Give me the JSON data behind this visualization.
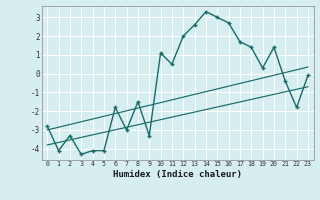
{
  "title": "",
  "xlabel": "Humidex (Indice chaleur)",
  "background_color": "#d6eef0",
  "grid_color": "#ffffff",
  "line_color": "#1a6b6b",
  "xlim": [
    -0.5,
    23.5
  ],
  "ylim": [
    -4.6,
    3.6
  ],
  "yticks": [
    -4,
    -3,
    -2,
    -1,
    0,
    1,
    2,
    3
  ],
  "xticks": [
    0,
    1,
    2,
    3,
    4,
    5,
    6,
    7,
    8,
    9,
    10,
    11,
    12,
    13,
    14,
    15,
    16,
    17,
    18,
    19,
    20,
    21,
    22,
    23
  ],
  "main_series_x": [
    0,
    1,
    2,
    3,
    4,
    5,
    6,
    7,
    8,
    9,
    10,
    11,
    12,
    13,
    14,
    15,
    16,
    17,
    18,
    19,
    20,
    21,
    22,
    23
  ],
  "main_series_y": [
    -2.8,
    -4.1,
    -3.3,
    -4.3,
    -4.1,
    -4.1,
    -1.8,
    -3.0,
    -1.5,
    -3.3,
    1.1,
    0.5,
    2.0,
    2.6,
    3.3,
    3.0,
    2.7,
    1.7,
    1.4,
    0.3,
    1.4,
    -0.4,
    -1.8,
    -0.1
  ],
  "trend1_x": [
    0,
    23
  ],
  "trend1_y": [
    -3.0,
    0.35
  ],
  "trend2_x": [
    0,
    23
  ],
  "trend2_y": [
    -3.8,
    -0.7
  ]
}
